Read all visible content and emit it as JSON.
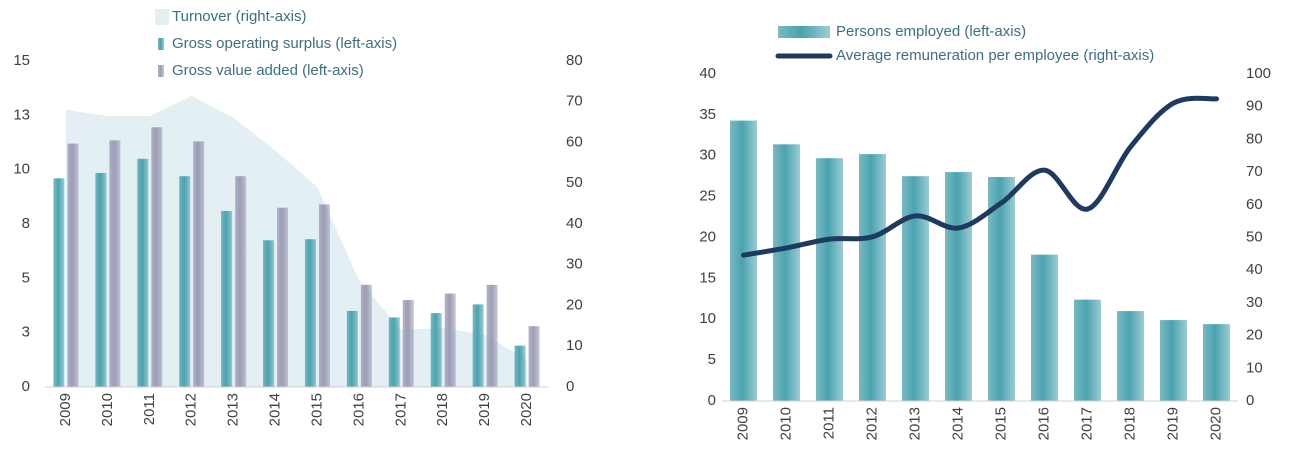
{
  "chart_data": [
    {
      "type": "bar",
      "categories": [
        "2009",
        "2010",
        "2011",
        "2012",
        "2013",
        "2014",
        "2015",
        "2016",
        "2017",
        "2018",
        "2019",
        "2020"
      ],
      "series": [
        {
          "name": "Turnover (right-axis)",
          "type": "area",
          "axis": "y2",
          "color": "#e3eff2",
          "values": [
            68,
            66.5,
            66.5,
            71.4,
            66,
            58,
            49,
            26,
            14,
            14.5,
            12.8,
            6.6
          ]
        },
        {
          "name": "Gross operating surplus (left-axis)",
          "type": "bar",
          "color": "#4aa3b0",
          "values": [
            9.6,
            9.85,
            10.5,
            9.7,
            8.1,
            6.75,
            6.8,
            3.5,
            3.2,
            3.4,
            3.8,
            1.9
          ]
        },
        {
          "name": "Gross value added (left-axis)",
          "type": "bar",
          "color": "#9c9cb6",
          "values": [
            11.2,
            11.35,
            11.95,
            11.3,
            9.7,
            8.25,
            8.4,
            4.7,
            4.0,
            4.3,
            4.7,
            2.8
          ]
        }
      ],
      "ylim": [
        0,
        15
      ],
      "yticks": [
        0,
        {
          "value": 2.5,
          "label": "3"
        },
        5,
        {
          "value": 7.5,
          "label": "8"
        },
        10,
        {
          "value": 12.5,
          "label": "13"
        },
        15
      ],
      "y2lim": [
        0,
        80
      ],
      "y2ticks": [
        0,
        10,
        20,
        30,
        40,
        50,
        60,
        70,
        80
      ],
      "grid": false
    },
    {
      "type": "bar",
      "categories": [
        "2009",
        "2010",
        "2011",
        "2012",
        "2013",
        "2014",
        "2015",
        "2016",
        "2017",
        "2018",
        "2019",
        "2020"
      ],
      "series": [
        {
          "name": "Persons employed (left-axis)",
          "type": "bar",
          "color": "#4aa3b0",
          "values": [
            34.3,
            31.4,
            29.7,
            30.2,
            27.5,
            28.0,
            27.4,
            17.9,
            12.4,
            11.0,
            9.9,
            9.4
          ]
        },
        {
          "name": "Average remuneration per employee (right-axis)",
          "type": "line",
          "axis": "y2",
          "color": "#1f3a5f",
          "values": [
            44.6,
            46.8,
            49.5,
            50.2,
            56.6,
            52.9,
            60.6,
            70.6,
            58.7,
            77.7,
            91.1,
            92.4
          ]
        }
      ],
      "ylim": [
        0,
        40
      ],
      "yticks": [
        0,
        5,
        10,
        15,
        20,
        25,
        30,
        35,
        40
      ],
      "y2lim": [
        0,
        100
      ],
      "y2ticks": [
        0,
        10,
        20,
        30,
        40,
        50,
        60,
        70,
        80,
        90,
        100
      ],
      "grid": false
    }
  ]
}
